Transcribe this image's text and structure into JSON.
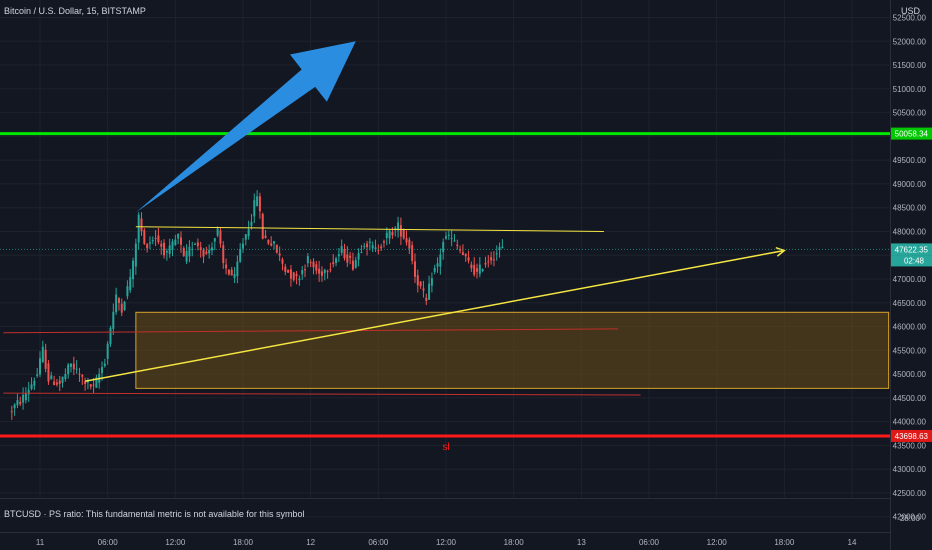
{
  "header": {
    "symbol_title": "Bitcoin / U.S. Dollar, 15, BITSTAMP",
    "currency": "USD"
  },
  "footer_note": "BTCUSD · PS ratio: This fundamental metric is not available for this symbol",
  "colors": {
    "background": "#131722",
    "grid": "#1e222d",
    "axis_text": "#b2b5be",
    "candle_up": "#26a69a",
    "candle_down": "#ef5350",
    "resistance": "#00e600",
    "stop_loss": "#ff1a1a",
    "trend": "#f5e642",
    "zone_fill": "#6b4e16",
    "zone_border": "#d6a32a",
    "arrow": "#2a8de0",
    "thin_red": "#c0302b"
  },
  "chart_data": {
    "type": "candlestick",
    "symbol": "BTCUSD",
    "exchange": "BITSTAMP",
    "interval": "15",
    "y_range": [
      41700,
      52700
    ],
    "y_ticks": [
      42000,
      42500,
      43000,
      43500,
      44000,
      44500,
      45000,
      45500,
      46000,
      46500,
      47000,
      47500,
      48000,
      48500,
      49000,
      49500,
      50000,
      50500,
      51000,
      51500,
      52000,
      52500
    ],
    "y_tick_labels": [
      "42000.00",
      "42500.00",
      "43000.00",
      "43500.00",
      "44000.00",
      "44500.00",
      "45000.00",
      "45500.00",
      "46000.00",
      "46500.00",
      "47000.00",
      "47500.00",
      "48000.00",
      "48500.00",
      "49000.00",
      "49500.00",
      "50000.00",
      "50500.00",
      "51000.00",
      "51500.00",
      "52000.00",
      "52500.00"
    ],
    "x_ticks": [
      "11",
      "06:00",
      "12:00",
      "18:00",
      "12",
      "06:00",
      "12:00",
      "18:00",
      "13",
      "06:00",
      "12:00",
      "18:00",
      "14"
    ],
    "secondary_pane_label": "28.00",
    "price_labels": [
      {
        "value": 50058.34,
        "label": "50058.34",
        "kind": "resistance"
      },
      {
        "value": 47622.35,
        "label": "47622.35",
        "kind": "last"
      },
      {
        "value": 43698.63,
        "label": "43698.63",
        "kind": "stop_loss"
      }
    ],
    "countdown": "02:48",
    "anchors": [
      {
        "name": "11",
        "t": 0
      },
      {
        "name": "06:00",
        "t": 24
      },
      {
        "name": "12:00",
        "t": 48
      },
      {
        "name": "18:00",
        "t": 72
      },
      {
        "name": "12",
        "t": 96
      },
      {
        "name": "06:00",
        "t": 120
      },
      {
        "name": "12:00",
        "t": 144
      },
      {
        "name": "18:00",
        "t": 168
      },
      {
        "name": "13",
        "t": 192
      },
      {
        "name": "06:00",
        "t": 216
      },
      {
        "name": "12:00",
        "t": 240
      },
      {
        "name": "18:00",
        "t": 264
      },
      {
        "name": "14",
        "t": 288
      }
    ],
    "price_path": [
      [
        -10,
        44200
      ],
      [
        -5,
        44500
      ],
      [
        0,
        45000
      ],
      [
        2,
        45500
      ],
      [
        4,
        44900
      ],
      [
        8,
        44800
      ],
      [
        12,
        45200
      ],
      [
        16,
        44900
      ],
      [
        20,
        44700
      ],
      [
        24,
        45300
      ],
      [
        26,
        46000
      ],
      [
        28,
        46600
      ],
      [
        30,
        46400
      ],
      [
        32,
        46800
      ],
      [
        34,
        47300
      ],
      [
        36,
        48300
      ],
      [
        38,
        47700
      ],
      [
        42,
        47900
      ],
      [
        46,
        47500
      ],
      [
        50,
        47900
      ],
      [
        52,
        47400
      ],
      [
        56,
        47800
      ],
      [
        60,
        47500
      ],
      [
        64,
        48000
      ],
      [
        66,
        47300
      ],
      [
        70,
        47000
      ],
      [
        72,
        47600
      ],
      [
        76,
        48300
      ],
      [
        78,
        48800
      ],
      [
        80,
        47900
      ],
      [
        84,
        47700
      ],
      [
        88,
        47200
      ],
      [
        92,
        47000
      ],
      [
        96,
        47400
      ],
      [
        100,
        47100
      ],
      [
        104,
        47300
      ],
      [
        108,
        47600
      ],
      [
        112,
        47300
      ],
      [
        116,
        47800
      ],
      [
        120,
        47600
      ],
      [
        124,
        47900
      ],
      [
        128,
        48100
      ],
      [
        130,
        47900
      ],
      [
        132,
        47700
      ],
      [
        134,
        47100
      ],
      [
        136,
        46800
      ],
      [
        138,
        46500
      ],
      [
        140,
        47100
      ],
      [
        142,
        47300
      ],
      [
        144,
        47800
      ],
      [
        146,
        47900
      ],
      [
        150,
        47600
      ],
      [
        152,
        47400
      ],
      [
        156,
        47100
      ],
      [
        158,
        47300
      ],
      [
        162,
        47500
      ],
      [
        164,
        47622
      ]
    ],
    "levels": {
      "resistance": 50058.34,
      "stop_loss": 43698.63,
      "stop_loss_label": "sl"
    },
    "annotations": {
      "zone": {
        "t_start": 34,
        "t_end": 301,
        "price_top": 46300,
        "price_bottom": 44700
      },
      "triangle_top_line": {
        "start": [
          34,
          48100
        ],
        "end": [
          200,
          48000
        ]
      },
      "rising_trendline": {
        "start": [
          16,
          44850
        ],
        "end": [
          264,
          47600
        ]
      },
      "thin_red_upper": {
        "start": [
          -13,
          45870
        ],
        "end": [
          205,
          45950
        ]
      },
      "thin_red_lower": {
        "start": [
          -13,
          44600
        ],
        "end": [
          213,
          44560
        ]
      },
      "blue_arrow": {
        "start": [
          34,
          48400
        ],
        "end": [
          112,
          52000
        ]
      }
    }
  }
}
